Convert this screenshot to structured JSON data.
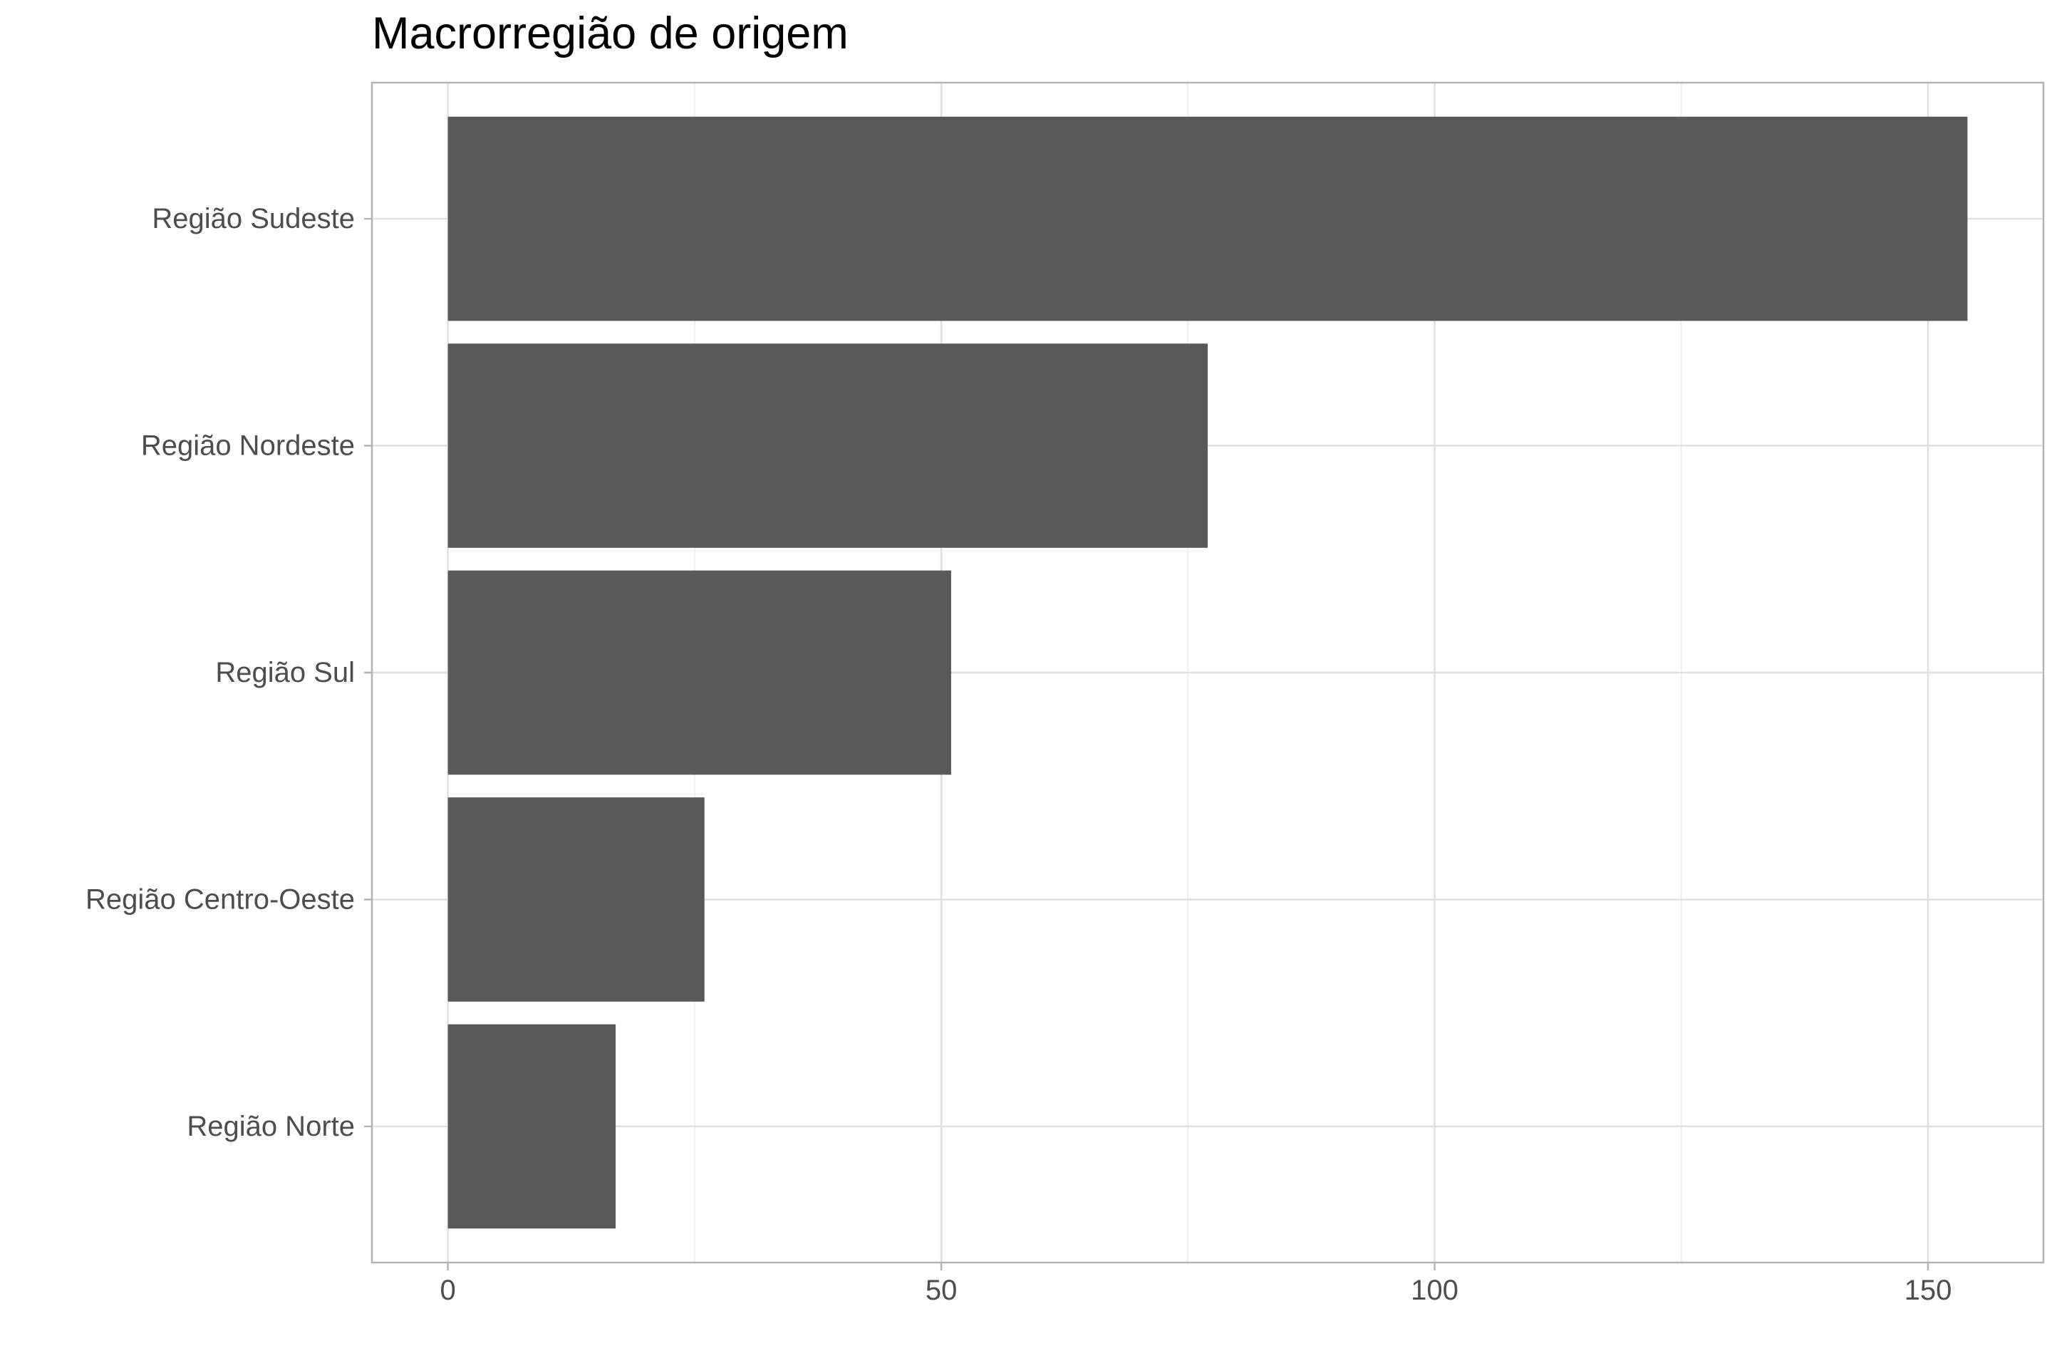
{
  "chart_data": {
    "type": "bar",
    "orientation": "horizontal",
    "title": "Macrorregião de origem",
    "xlabel": "",
    "ylabel": "",
    "categories": [
      "Região Sudeste",
      "Região Nordeste",
      "Região Sul",
      "Região Centro-Oeste",
      "Região Norte"
    ],
    "values": [
      154,
      77,
      51,
      26,
      17
    ],
    "xlim": [
      -7.7,
      161.7
    ],
    "xticks": [
      0,
      50,
      100,
      150
    ],
    "xtick_labels": [
      "0",
      "50",
      "100",
      "150"
    ],
    "grid": true,
    "legend": "none",
    "colors": {
      "bar": "#595959",
      "grid_major": "#e0e0e0",
      "grid_minor": "#ebebeb",
      "panel_border": "#b3b3b3",
      "axis_text": "#4d4d4d",
      "background": "#ffffff"
    }
  }
}
